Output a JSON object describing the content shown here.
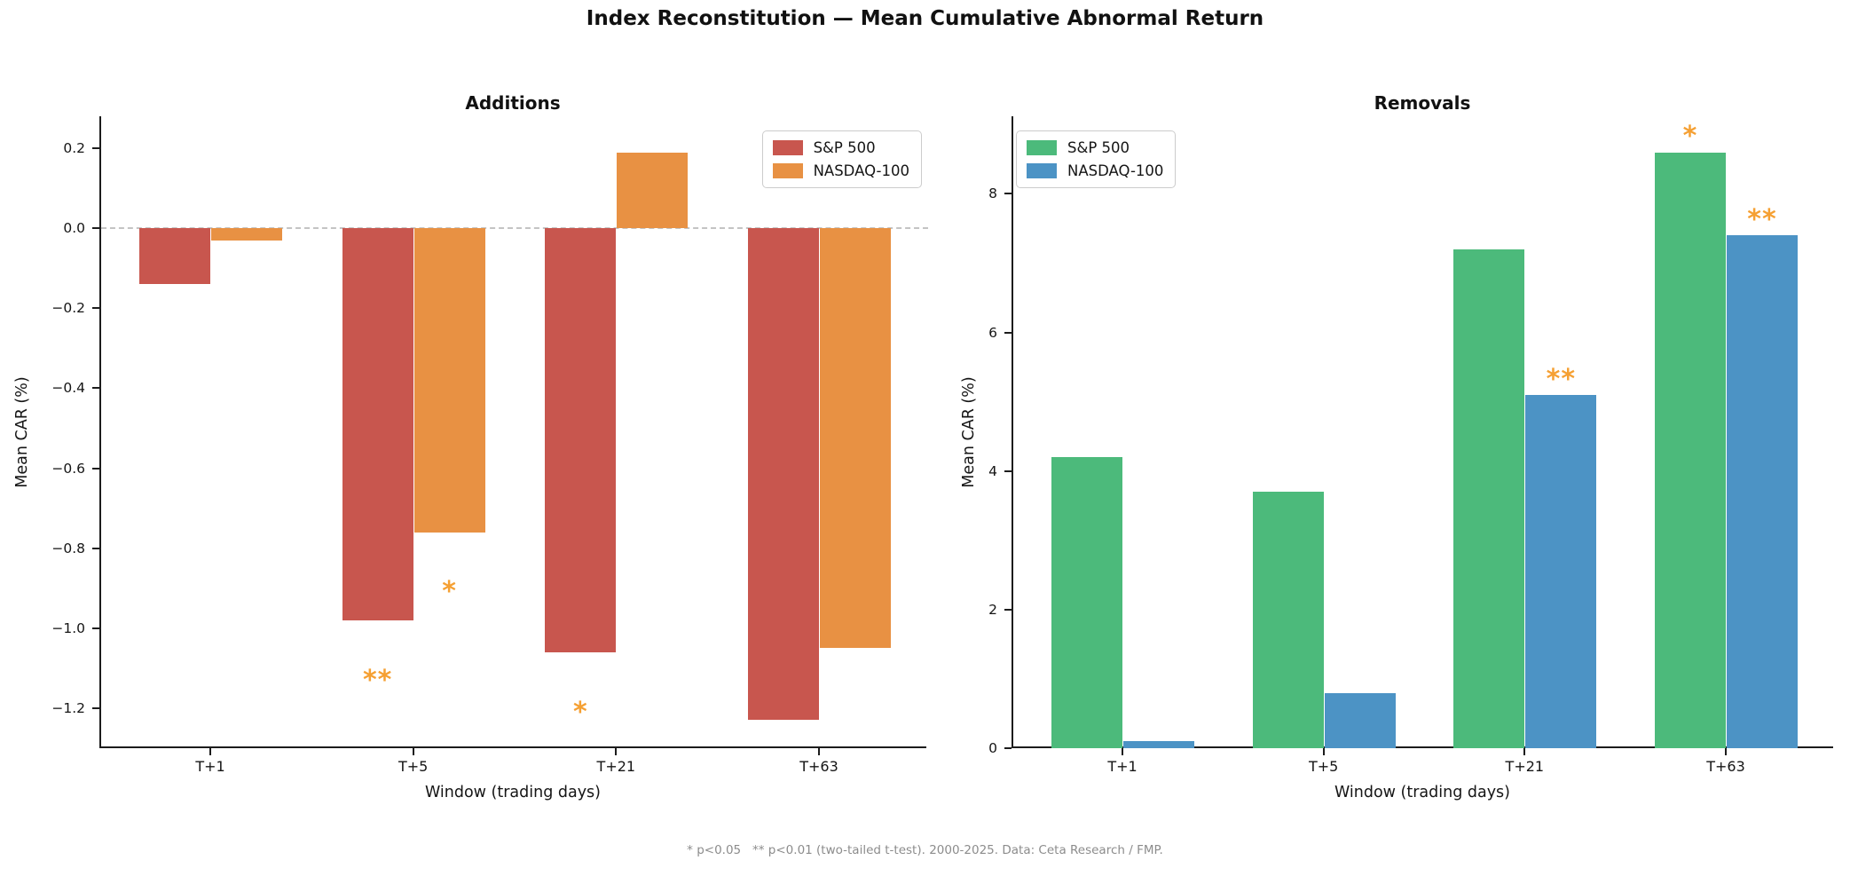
{
  "figure": {
    "suptitle": "Index Reconstitution — Mean Cumulative Abnormal Return",
    "footnote": "* p<0.05   ** p<0.01 (two-tailed t-test). 2000-2025. Data: Ceta Research / FMP."
  },
  "colors": {
    "significance": "#F5A033",
    "zero_line": "#C4C4C4",
    "footnote_text": "#8C8C8C",
    "axis_text": "#151515",
    "spine": "#1C1C1C",
    "legend_border": "#CCCCCC"
  },
  "chart_data": [
    {
      "type": "bar",
      "title": "Additions",
      "xlabel": "Window (trading days)",
      "ylabel": "Mean CAR (%)",
      "categories": [
        "T+1",
        "T+5",
        "T+21",
        "T+63"
      ],
      "series": [
        {
          "name": "S&P 500",
          "color": "#C8564E",
          "values": [
            -0.14,
            -0.98,
            -1.06,
            -1.23
          ],
          "significance": [
            "",
            "**",
            "*",
            ""
          ]
        },
        {
          "name": "NASDAQ-100",
          "color": "#E89143",
          "values": [
            -0.03,
            -0.76,
            0.19,
            -1.05
          ],
          "significance": [
            "",
            "*",
            "",
            ""
          ]
        }
      ],
      "ylim": [
        -1.3,
        0.28
      ],
      "yticks": [
        0.2,
        0.0,
        -0.2,
        -0.4,
        -0.6,
        -0.8,
        -1.0,
        -1.2
      ],
      "ytick_labels": [
        "0.2",
        "0.0",
        "−0.2",
        "−0.4",
        "−0.6",
        "−0.8",
        "−1.0",
        "−1.2"
      ],
      "grid": false,
      "zero_line": true,
      "legend_position": "top-right",
      "sig_offset": 0.135
    },
    {
      "type": "bar",
      "title": "Removals",
      "xlabel": "Window (trading days)",
      "ylabel": "Mean CAR (%)",
      "categories": [
        "T+1",
        "T+5",
        "T+21",
        "T+63"
      ],
      "series": [
        {
          "name": "S&P 500",
          "color": "#4CBA7B",
          "values": [
            4.2,
            3.7,
            7.2,
            8.6
          ],
          "significance": [
            "",
            "",
            "",
            "*"
          ]
        },
        {
          "name": "NASDAQ-100",
          "color": "#4C93C5",
          "values": [
            0.1,
            0.8,
            5.1,
            7.4
          ],
          "significance": [
            "",
            "",
            "**",
            "**"
          ]
        }
      ],
      "ylim": [
        0,
        9.12
      ],
      "yticks": [
        0,
        2,
        4,
        6,
        8
      ],
      "ytick_labels": [
        "0",
        "2",
        "4",
        "6",
        "8"
      ],
      "grid": false,
      "zero_line": false,
      "legend_position": "top-left",
      "sig_offset": 0.31
    }
  ]
}
